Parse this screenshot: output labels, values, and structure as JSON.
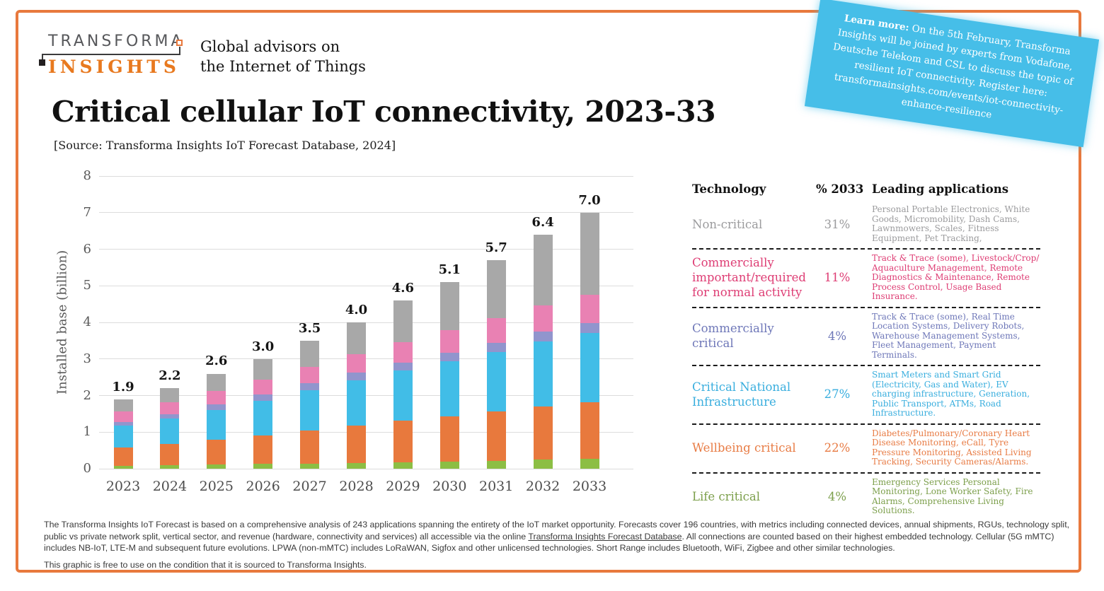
{
  "brand": {
    "logo_line1": "TRANSFORMA",
    "logo_line2": "INSIGHTS",
    "tagline_line1": "Global advisors on",
    "tagline_line2": "the Internet of Things"
  },
  "banner": {
    "bg_color": "#46BEE8",
    "bold_prefix": "Learn more:",
    "lines": [
      " On the 5th February, Transforma",
      "Insights will be joined by experts from Vodafone,",
      "Deutsche Telekom and CSL to discuss the topic of",
      "resilient IoT connectivity. Register here:",
      "transformainsights.com/events/iot-connectivity-",
      "enhance-resilience"
    ]
  },
  "title": "Critical cellular IoT connectivity, 2023-33",
  "source": "[Source: Transforma Insights IoT Forecast Database, 2024]",
  "chart_data": {
    "type": "bar",
    "stacked": true,
    "title": "Critical cellular IoT connectivity, 2023-33",
    "xlabel": "",
    "ylabel": "Installed base (billion)",
    "ylim": [
      0,
      8
    ],
    "yticks": [
      0,
      1,
      2,
      3,
      4,
      5,
      6,
      7,
      8
    ],
    "grid": true,
    "categories": [
      "2023",
      "2024",
      "2025",
      "2026",
      "2027",
      "2028",
      "2029",
      "2030",
      "2031",
      "2032",
      "2033"
    ],
    "totals": [
      "1.9",
      "2.2",
      "2.6",
      "3.0",
      "3.5",
      "4.0",
      "4.6",
      "5.1",
      "5.7",
      "6.4",
      "7.0"
    ],
    "series": [
      {
        "name": "Life critical",
        "color": "#8CBE44",
        "values": [
          0.08,
          0.09,
          0.11,
          0.13,
          0.14,
          0.16,
          0.18,
          0.2,
          0.22,
          0.25,
          0.28
        ]
      },
      {
        "name": "Wellbeing critical",
        "color": "#E8793D",
        "values": [
          0.5,
          0.58,
          0.68,
          0.78,
          0.9,
          1.02,
          1.13,
          1.23,
          1.34,
          1.45,
          1.54
        ]
      },
      {
        "name": "Critical National Infrastructure",
        "color": "#41BDE7",
        "values": [
          0.6,
          0.7,
          0.82,
          0.94,
          1.1,
          1.24,
          1.37,
          1.5,
          1.63,
          1.77,
          1.89
        ]
      },
      {
        "name": "Commercially critical",
        "color": "#9195CD",
        "values": [
          0.1,
          0.12,
          0.15,
          0.18,
          0.19,
          0.21,
          0.22,
          0.24,
          0.25,
          0.27,
          0.28
        ]
      },
      {
        "name": "Commercially important/required for normal activity",
        "color": "#E981B3",
        "values": [
          0.28,
          0.33,
          0.37,
          0.41,
          0.45,
          0.5,
          0.56,
          0.62,
          0.68,
          0.73,
          0.77
        ]
      },
      {
        "name": "Non-critical",
        "color": "#A8A8A8",
        "values": [
          0.34,
          0.38,
          0.47,
          0.56,
          0.72,
          0.87,
          1.14,
          1.31,
          1.58,
          1.93,
          2.24
        ]
      }
    ]
  },
  "table": {
    "headers": {
      "technology": "Technology",
      "pct2033": "% 2033",
      "apps": "Leading applications"
    },
    "rows": [
      {
        "label": "Non-critical",
        "pct": "31%",
        "color": "#9B9B9D",
        "apps": "Personal Portable Electronics, White Goods, Micromobility, Dash Cams, Lawnmowers, Scales, Fitness Equipment, Pet Tracking,"
      },
      {
        "label": "Commercially important/required for normal activity",
        "pct": "11%",
        "color": "#DE3D74",
        "apps": "Track & Trace (some), Livestock/Crop/ Aquaculture Management, Remote Diagnostics & Maintenance, Remote Process Control, Usage Based Insurance."
      },
      {
        "label": "Commercially critical",
        "pct": "4%",
        "color": "#6E77B8",
        "apps": "Track & Trace (some), Real Time Location Systems, Delivery Robots, Warehouse Management Systems, Fleet Management, Payment Terminals."
      },
      {
        "label": "Critical National Infrastructure",
        "pct": "27%",
        "color": "#39AEDE",
        "apps": "Smart Meters and Smart Grid (Electricity, Gas and Water), EV charging infrastructure, Generation, Public Transport, ATMs, Road Infrastructure."
      },
      {
        "label": "Wellbeing critical",
        "pct": "22%",
        "color": "#E87C45",
        "apps": "Diabetes/Pulmonary/Coronary Heart Disease Monitoring, eCall, Tyre Pressure Monitoring, Assisted Living Tracking, Security Cameras/Alarms."
      },
      {
        "label": "Life critical",
        "pct": "4%",
        "color": "#7C9F4B",
        "apps": "Emergency Services Personal Monitoring, Lone Worker Safety, Fire Alarms, Comprehensive Living Solutions."
      }
    ]
  },
  "footer": {
    "p1_before": "The Transforma Insights IoT Forecast is based on a comprehensive analysis of 243 applications spanning the entirety of the IoT market opportunity. Forecasts cover 196 countries, with metrics including connected devices, annual shipments, RGUs, technology split, public vs private network split, vertical sector, and revenue (hardware, connectivity and services) all accessible via the online ",
    "p1_link": "Transforma Insights Forecast Database",
    "p1_after": ". All connections are counted based on their highest embedded technology. Cellular (5G mMTC) includes NB-IoT, LTE-M and subsequent future evolutions. LPWA (non-mMTC) includes LoRaWAN, Sigfox and other unlicensed technologies. Short Range includes Bluetooth, WiFi, Zigbee and other similar technologies.",
    "p2": "This graphic is free to use on the condition that it is sourced to Transforma Insights."
  }
}
